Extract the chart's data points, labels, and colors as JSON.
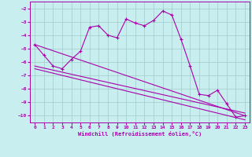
{
  "xlabel": "Windchill (Refroidissement éolien,°C)",
  "background_color": "#c8eef0",
  "grid_color": "#a0ccc8",
  "line_color": "#aa00aa",
  "xlim": [
    -0.5,
    23.5
  ],
  "ylim": [
    -10.5,
    -1.5
  ],
  "yticks": [
    -10,
    -9,
    -8,
    -7,
    -6,
    -5,
    -4,
    -3,
    -2
  ],
  "xticks": [
    0,
    1,
    2,
    3,
    4,
    5,
    6,
    7,
    8,
    9,
    10,
    11,
    12,
    13,
    14,
    15,
    16,
    17,
    18,
    19,
    20,
    21,
    22,
    23
  ],
  "series1_x": [
    0,
    1,
    2,
    3,
    4,
    5,
    6,
    7,
    8,
    9,
    10,
    11,
    12,
    13,
    14,
    15,
    16,
    17,
    18,
    19,
    20,
    21,
    22,
    23
  ],
  "series1_y": [
    -4.7,
    -5.5,
    -6.3,
    -6.5,
    -5.8,
    -5.2,
    -3.4,
    -3.3,
    -4.0,
    -4.2,
    -2.8,
    -3.1,
    -3.3,
    -2.9,
    -2.2,
    -2.5,
    -4.3,
    -6.3,
    -8.4,
    -8.5,
    -8.1,
    -9.1,
    -10.1,
    -10.0
  ],
  "series2_x": [
    0,
    23
  ],
  "series2_y": [
    -4.7,
    -10.0
  ],
  "series3_x": [
    0,
    23
  ],
  "series3_y": [
    -6.3,
    -9.8
  ],
  "series4_x": [
    0,
    23
  ],
  "series4_y": [
    -6.5,
    -10.3
  ]
}
